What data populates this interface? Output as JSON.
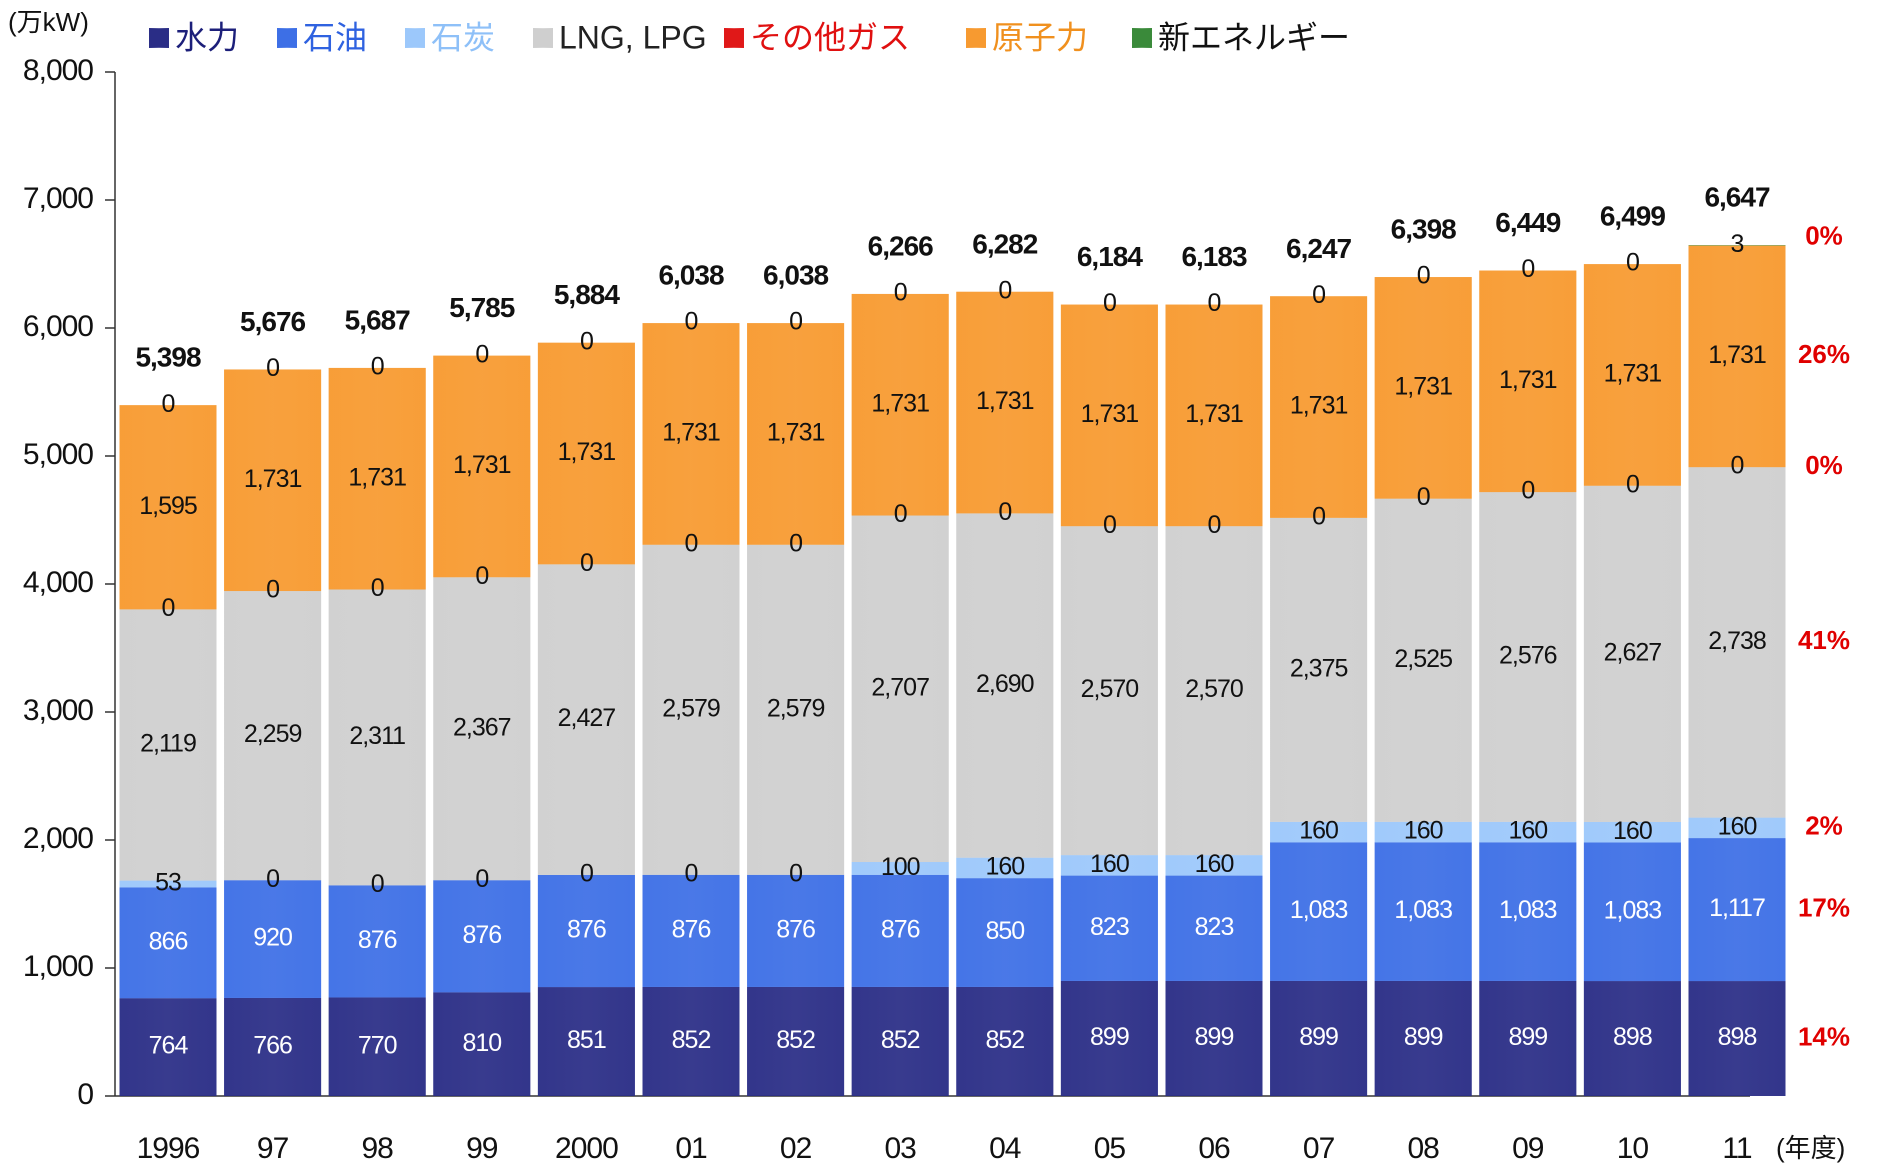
{
  "chart_data": {
    "type": "stacked_bar",
    "y_unit": "(万kW)",
    "x_unit": "(年度)",
    "categories": [
      "1996",
      "97",
      "98",
      "99",
      "2000",
      "01",
      "02",
      "03",
      "04",
      "05",
      "06",
      "07",
      "08",
      "09",
      "10",
      "11"
    ],
    "ylim": [
      0,
      8000
    ],
    "yticks": [
      0,
      {
        "value": 1000,
        "label": "1,000"
      },
      {
        "value": 2000,
        "label": "2,000"
      },
      {
        "value": 3000,
        "label": "3,000"
      },
      {
        "value": 4000,
        "label": "4,000"
      },
      {
        "value": 5000,
        "label": "5,000"
      },
      {
        "value": 6000,
        "label": "6,000"
      },
      {
        "value": 7000,
        "label": "7,000"
      },
      {
        "value": 8000,
        "label": "8,000"
      }
    ],
    "series": [
      {
        "name": "水力",
        "color": "#2a2d86",
        "legend_text_color": "#1c1f7a",
        "data_label_color": "#ffffff",
        "values": [
          764,
          766,
          770,
          810,
          851,
          852,
          852,
          852,
          852,
          899,
          899,
          899,
          899,
          899,
          898,
          898
        ],
        "value_labels": [
          "764",
          "766",
          "770",
          "810",
          "851",
          "852",
          "852",
          "852",
          "852",
          "899",
          "899",
          "899",
          "899",
          "899",
          "898",
          "898"
        ],
        "share": 14,
        "share_label": "14%"
      },
      {
        "name": "石油",
        "color": "#3d6fe6",
        "legend_text_color": "#2f62e0",
        "data_label_color": "#ffffff",
        "values": [
          866,
          920,
          876,
          876,
          876,
          876,
          876,
          876,
          850,
          823,
          823,
          1083,
          1083,
          1083,
          1083,
          1117
        ],
        "value_labels": [
          "866",
          "920",
          "876",
          "876",
          "876",
          "876",
          "876",
          "876",
          "850",
          "823",
          "823",
          "1,083",
          "1,083",
          "1,083",
          "1,083",
          "1,117"
        ],
        "share": 17,
        "share_label": "17%"
      },
      {
        "name": "石炭",
        "color": "#9cc8fb",
        "legend_text_color": "#8ec0f8",
        "data_label_color": "#111111",
        "values": [
          53,
          0,
          0,
          0,
          0,
          0,
          0,
          100,
          160,
          160,
          160,
          160,
          160,
          160,
          160,
          160
        ],
        "value_labels": [
          "53",
          "0",
          "0",
          "0",
          "0",
          "0",
          "0",
          "100",
          "160",
          "160",
          "160",
          "160",
          "160",
          "160",
          "160",
          "160"
        ],
        "share": 2,
        "share_label": "2%"
      },
      {
        "name": "LNG, LPG",
        "color": "#cfcfcf",
        "legend_text_color": "#222222",
        "data_label_color": "#111111",
        "values": [
          2119,
          2259,
          2311,
          2367,
          2427,
          2579,
          2579,
          2707,
          2690,
          2570,
          2570,
          2375,
          2525,
          2576,
          2627,
          2738
        ],
        "value_labels": [
          "2,119",
          "2,259",
          "2,311",
          "2,367",
          "2,427",
          "2,579",
          "2,579",
          "2,707",
          "2,690",
          "2,570",
          "2,570",
          "2,375",
          "2,525",
          "2,576",
          "2,627",
          "2,738"
        ],
        "share": 41,
        "share_label": "41%"
      },
      {
        "name": "その他ガス",
        "color": "#e01818",
        "legend_text_color": "#e01010",
        "data_label_color": "#111111",
        "values": [
          0,
          0,
          0,
          0,
          0,
          0,
          0,
          0,
          0,
          0,
          0,
          0,
          0,
          0,
          0,
          0
        ],
        "value_labels": [
          "0",
          "0",
          "0",
          "0",
          "0",
          "0",
          "0",
          "0",
          "0",
          "0",
          "0",
          "0",
          "0",
          "0",
          "0",
          "0"
        ],
        "share": 0,
        "share_label": "0%"
      },
      {
        "name": "原子力",
        "color": "#f79a30",
        "legend_text_color": "#f0901e",
        "data_label_color": "#111111",
        "values": [
          1595,
          1731,
          1731,
          1731,
          1731,
          1731,
          1731,
          1731,
          1731,
          1731,
          1731,
          1731,
          1731,
          1731,
          1731,
          1731
        ],
        "value_labels": [
          "1,595",
          "1,731",
          "1,731",
          "1,731",
          "1,731",
          "1,731",
          "1,731",
          "1,731",
          "1,731",
          "1,731",
          "1,731",
          "1,731",
          "1,731",
          "1,731",
          "1,731",
          "1,731"
        ],
        "share": 26,
        "share_label": "26%"
      },
      {
        "name": "新エネルギー",
        "color": "#3a8a3a",
        "legend_text_color": "#111111",
        "data_label_color": "#111111",
        "values": [
          0,
          0,
          0,
          0,
          0,
          0,
          0,
          0,
          0,
          0,
          0,
          0,
          0,
          0,
          0,
          3
        ],
        "value_labels": [
          "0",
          "0",
          "0",
          "0",
          "0",
          "0",
          "0",
          "0",
          "0",
          "0",
          "0",
          "0",
          "0",
          "0",
          "0",
          "3"
        ],
        "share": 0,
        "share_label": "0%"
      }
    ],
    "totals": [
      5398,
      5676,
      5687,
      5785,
      5884,
      6038,
      6038,
      6266,
      6282,
      6184,
      6183,
      6247,
      6398,
      6449,
      6499,
      6647
    ],
    "total_labels": [
      "5,398",
      "5,676",
      "5,687",
      "5,785",
      "5,884",
      "6,038",
      "6,038",
      "6,266",
      "6,282",
      "6,184",
      "6,183",
      "6,247",
      "6,398",
      "6,449",
      "6,499",
      "6,647"
    ]
  }
}
